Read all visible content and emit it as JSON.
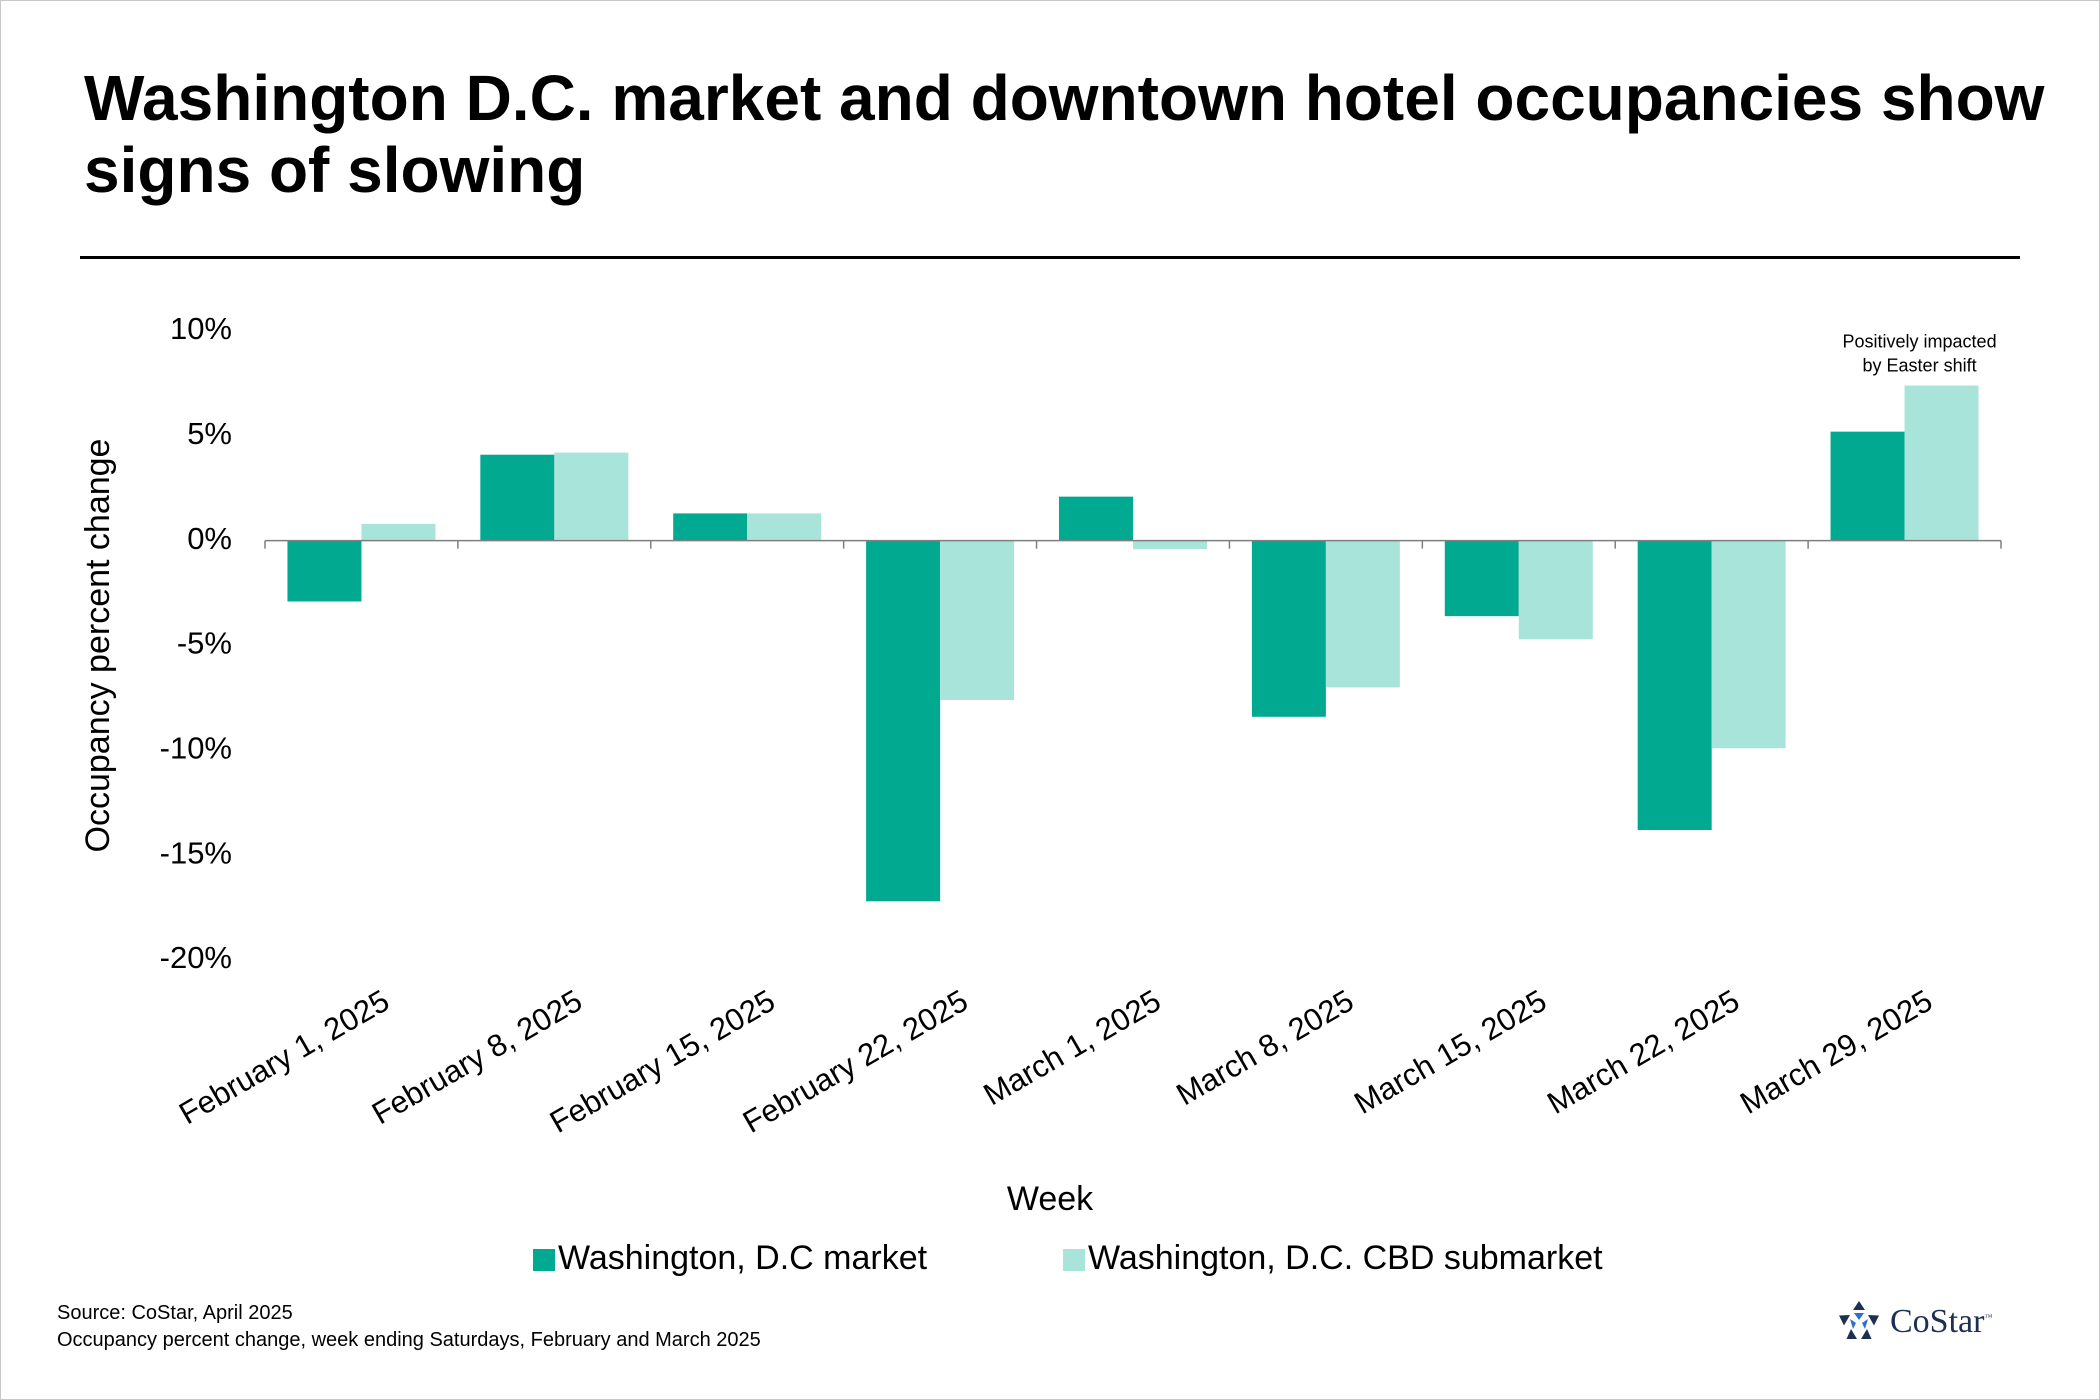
{
  "title": "Washington D.C. market and downtown hotel occupancies show signs of slowing",
  "colors": {
    "market": "#00a98f",
    "cbd": "#a9e4da",
    "axis": "#7f7f7f",
    "text": "#000000"
  },
  "chart_data": {
    "type": "bar",
    "title": "Washington D.C. market and downtown hotel occupancies show signs of slowing",
    "xlabel": "Week",
    "ylabel": "Occupancy percent change",
    "ylim": [
      -20,
      10
    ],
    "yticks": [
      10,
      5,
      0,
      -5,
      -10,
      -15,
      -20
    ],
    "ytick_labels": [
      "10%",
      "5%",
      "0%",
      "-5%",
      "-10%",
      "-15%",
      "-20%"
    ],
    "categories": [
      "February 1, 2025",
      "February 8, 2025",
      "February 15, 2025",
      "February 22, 2025",
      "March 1, 2025",
      "March 8, 2025",
      "March 15, 2025",
      "March 22, 2025",
      "March 29, 2025"
    ],
    "series": [
      {
        "name": "Washington, D.C market",
        "color": "#00a98f",
        "values": [
          -2.9,
          4.1,
          1.3,
          -17.2,
          2.1,
          -8.4,
          -3.6,
          -13.8,
          5.2
        ]
      },
      {
        "name": "Washington, D.C. CBD submarket",
        "color": "#a9e4da",
        "values": [
          0.8,
          4.2,
          1.3,
          -7.6,
          -0.4,
          -7.0,
          -4.7,
          -9.9,
          7.4
        ]
      }
    ],
    "annotations": [
      {
        "text": "Positively impacted by Easter shift",
        "lines": [
          "Positively impacted",
          "by Easter shift"
        ],
        "category": "March 29, 2025",
        "series": "Washington, D.C. CBD submarket"
      }
    ],
    "legend_position": "bottom",
    "grid": false
  },
  "footer": {
    "source": "Source: CoStar, April 2025",
    "note": "Occupancy percent change, week ending Saturdays, February and March 2025"
  },
  "logo": {
    "text": "CoStar",
    "tm": "™"
  }
}
